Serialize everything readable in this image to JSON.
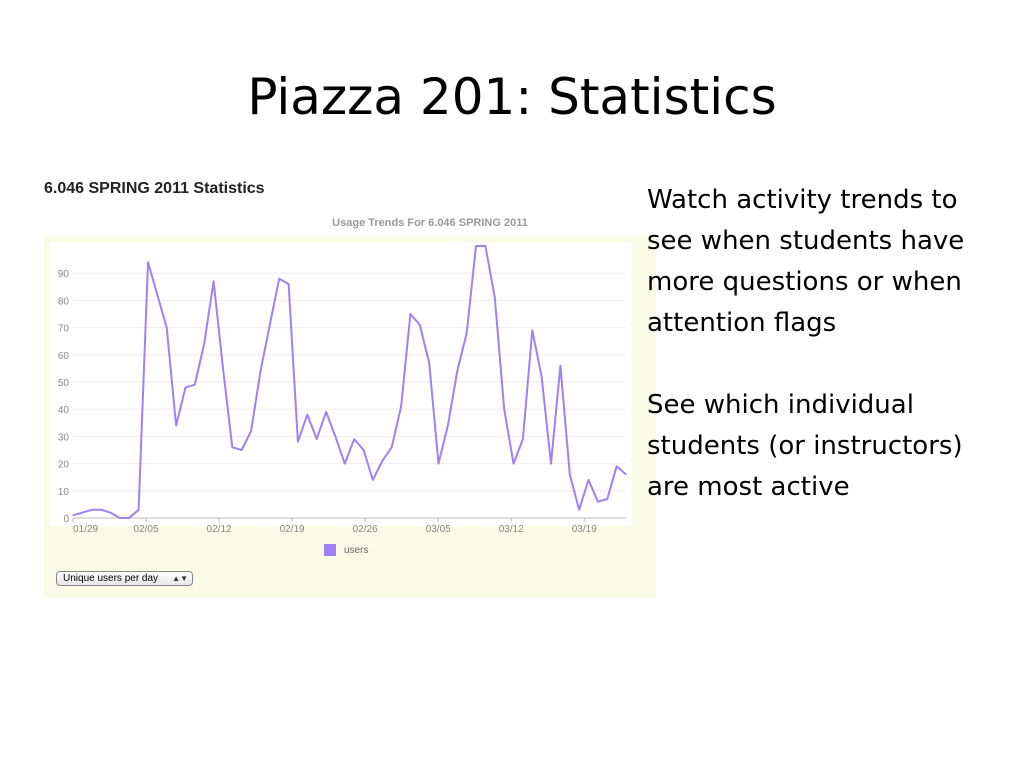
{
  "slide": {
    "title": "Piazza 201: Statistics"
  },
  "panel": {
    "heading": "6.046 SPRING 2011 Statistics",
    "select_value": "Unique users per day"
  },
  "side_text": {
    "paragraph_1": "Watch activity trends to see when students have more questions or when attention flags",
    "paragraph_2": "See which individual students (or instructors) are most active"
  },
  "colors": {
    "series": "#9f80f5",
    "panel_bg": "#fafbe6",
    "plot_bg": "#ffffff",
    "grid": "#eeeeee",
    "axis_text": "#888888"
  },
  "chart_data": {
    "type": "line",
    "title": "Usage Trends For 6.046 SPRING 2011",
    "xlabel": "",
    "ylabel": "",
    "ylim": [
      0,
      100
    ],
    "grid": true,
    "legend": "bottom",
    "y_ticks": [
      "0",
      "10",
      "20",
      "30",
      "40",
      "50",
      "60",
      "70",
      "80",
      "90"
    ],
    "x_ticks": [
      "01/29",
      "02/05",
      "02/12",
      "02/19",
      "02/26",
      "03/05",
      "03/12",
      "03/19"
    ],
    "x_start": "01/29",
    "x_end": "03/19",
    "series": [
      {
        "name": "users",
        "values": [
          1,
          2,
          3,
          3,
          2,
          0,
          0,
          3,
          94,
          82,
          70,
          34,
          48,
          49,
          64,
          87,
          55,
          26,
          25,
          32,
          54,
          71,
          88,
          86,
          28,
          38,
          29,
          39,
          30,
          20,
          29,
          25,
          14,
          21,
          26,
          41,
          75,
          71,
          57,
          20,
          34,
          54,
          68,
          100,
          100,
          81,
          40,
          20,
          29,
          69,
          52,
          20,
          56,
          16,
          3,
          14,
          6,
          7,
          19,
          16
        ]
      }
    ]
  }
}
